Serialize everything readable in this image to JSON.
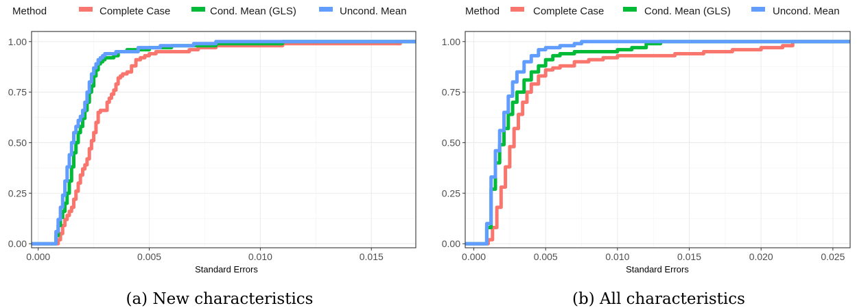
{
  "chart_data": [
    {
      "type": "line",
      "caption": "(a) New characteristics",
      "legend_title": "Method",
      "legend_position": "top",
      "xlabel": "Standard Errors",
      "ylabel": "",
      "xlim": [
        -0.0003,
        0.017
      ],
      "ylim": [
        -0.02,
        1.05
      ],
      "x_ticks": [
        0.0,
        0.005,
        0.01,
        0.015
      ],
      "x_tick_labels": [
        "0.000",
        "0.005",
        "0.010",
        "0.015"
      ],
      "y_ticks": [
        0.0,
        0.25,
        0.5,
        0.75,
        1.0
      ],
      "y_tick_labels": [
        "0.00",
        "0.25",
        "0.50",
        "0.75",
        "1.00"
      ],
      "grid": true,
      "series": [
        {
          "name": "Complete Case",
          "color": "#F8766D",
          "x": [
            -0.0003,
            0.0008,
            0.0009,
            0.001,
            0.0011,
            0.0012,
            0.0013,
            0.0014,
            0.0015,
            0.0016,
            0.0017,
            0.0018,
            0.0019,
            0.002,
            0.0021,
            0.0022,
            0.0023,
            0.0024,
            0.0025,
            0.0026,
            0.0027,
            0.0028,
            0.0029,
            0.003,
            0.0031,
            0.0032,
            0.0033,
            0.0034,
            0.0035,
            0.0036,
            0.0037,
            0.0038,
            0.004,
            0.0042,
            0.0044,
            0.0046,
            0.0048,
            0.005,
            0.0053,
            0.0057,
            0.0062,
            0.0068,
            0.0072,
            0.0076,
            0.008,
            0.011,
            0.015,
            0.0163,
            0.017
          ],
          "y": [
            0.0,
            0.0,
            0.02,
            0.05,
            0.09,
            0.12,
            0.14,
            0.16,
            0.18,
            0.22,
            0.26,
            0.3,
            0.34,
            0.37,
            0.39,
            0.42,
            0.47,
            0.51,
            0.55,
            0.6,
            0.65,
            0.66,
            0.66,
            0.66,
            0.7,
            0.72,
            0.74,
            0.76,
            0.79,
            0.82,
            0.83,
            0.84,
            0.85,
            0.88,
            0.91,
            0.92,
            0.93,
            0.94,
            0.95,
            0.95,
            0.95,
            0.96,
            0.97,
            0.97,
            0.98,
            0.99,
            0.99,
            1.0,
            1.0
          ]
        },
        {
          "name": "Cond. Mean (GLS)",
          "color": "#00BA38",
          "x": [
            -0.0003,
            0.0007,
            0.0008,
            0.0009,
            0.001,
            0.0011,
            0.0012,
            0.0013,
            0.0014,
            0.0015,
            0.0016,
            0.0017,
            0.0018,
            0.0019,
            0.002,
            0.0021,
            0.0022,
            0.0023,
            0.0024,
            0.0025,
            0.0026,
            0.0027,
            0.0028,
            0.0029,
            0.003,
            0.0032,
            0.0034,
            0.0036,
            0.004,
            0.0045,
            0.005,
            0.006,
            0.007,
            0.008,
            0.011,
            0.017
          ],
          "y": [
            0.0,
            0.0,
            0.04,
            0.09,
            0.13,
            0.16,
            0.2,
            0.25,
            0.31,
            0.38,
            0.45,
            0.5,
            0.55,
            0.58,
            0.62,
            0.66,
            0.7,
            0.75,
            0.78,
            0.83,
            0.86,
            0.89,
            0.9,
            0.91,
            0.92,
            0.92,
            0.93,
            0.95,
            0.96,
            0.96,
            0.97,
            0.98,
            0.98,
            0.99,
            1.0,
            1.0
          ]
        },
        {
          "name": "Uncond. Mean",
          "color": "#619CFF",
          "x": [
            -0.0003,
            0.0007,
            0.0008,
            0.0009,
            0.001,
            0.0011,
            0.0012,
            0.0013,
            0.0014,
            0.0015,
            0.0016,
            0.0017,
            0.0018,
            0.0019,
            0.002,
            0.0021,
            0.0022,
            0.0023,
            0.0024,
            0.0025,
            0.0026,
            0.0027,
            0.0028,
            0.0029,
            0.003,
            0.0035,
            0.0045,
            0.0055,
            0.007,
            0.008,
            0.017
          ],
          "y": [
            0.0,
            0.0,
            0.06,
            0.12,
            0.18,
            0.24,
            0.31,
            0.38,
            0.44,
            0.5,
            0.55,
            0.58,
            0.61,
            0.63,
            0.66,
            0.7,
            0.75,
            0.8,
            0.84,
            0.87,
            0.89,
            0.91,
            0.92,
            0.93,
            0.94,
            0.95,
            0.97,
            0.98,
            0.99,
            1.0,
            1.0
          ]
        }
      ]
    },
    {
      "type": "line",
      "caption": "(b) All characteristics",
      "legend_title": "Method",
      "legend_position": "top",
      "xlabel": "Standard Errors",
      "ylabel": "",
      "xlim": [
        -0.0006,
        0.0262
      ],
      "ylim": [
        -0.02,
        1.05
      ],
      "x_ticks": [
        0.0,
        0.005,
        0.01,
        0.015,
        0.02,
        0.025
      ],
      "x_tick_labels": [
        "0.000",
        "0.005",
        "0.010",
        "0.015",
        "0.020",
        "0.025"
      ],
      "y_ticks": [
        0.0,
        0.25,
        0.5,
        0.75,
        1.0
      ],
      "y_tick_labels": [
        "0.00",
        "0.25",
        "0.50",
        "0.75",
        "1.00"
      ],
      "grid": true,
      "series": [
        {
          "name": "Complete Case",
          "color": "#F8766D",
          "x": [
            -0.0006,
            0.0007,
            0.001,
            0.0013,
            0.0016,
            0.0019,
            0.0022,
            0.0025,
            0.0028,
            0.0031,
            0.0034,
            0.0037,
            0.004,
            0.0045,
            0.005,
            0.0055,
            0.006,
            0.007,
            0.008,
            0.009,
            0.01,
            0.012,
            0.014,
            0.016,
            0.018,
            0.02,
            0.0215,
            0.0222,
            0.0262
          ],
          "y": [
            0.0,
            0.0,
            0.02,
            0.08,
            0.18,
            0.28,
            0.38,
            0.48,
            0.57,
            0.64,
            0.7,
            0.75,
            0.79,
            0.83,
            0.86,
            0.87,
            0.88,
            0.9,
            0.91,
            0.92,
            0.93,
            0.93,
            0.94,
            0.95,
            0.96,
            0.97,
            0.98,
            1.0,
            1.0
          ]
        },
        {
          "name": "Cond. Mean (GLS)",
          "color": "#00BA38",
          "x": [
            -0.0006,
            0.0006,
            0.0009,
            0.0012,
            0.0015,
            0.0018,
            0.0021,
            0.0024,
            0.0027,
            0.003,
            0.0035,
            0.004,
            0.0045,
            0.005,
            0.0055,
            0.006,
            0.007,
            0.008,
            0.009,
            0.01,
            0.011,
            0.012,
            0.013,
            0.0262
          ],
          "y": [
            0.0,
            0.0,
            0.08,
            0.27,
            0.4,
            0.49,
            0.57,
            0.64,
            0.7,
            0.75,
            0.81,
            0.85,
            0.88,
            0.91,
            0.93,
            0.94,
            0.95,
            0.95,
            0.95,
            0.96,
            0.97,
            0.99,
            1.0,
            1.0
          ]
        },
        {
          "name": "Uncond. Mean",
          "color": "#619CFF",
          "x": [
            -0.0006,
            0.0006,
            0.0009,
            0.0012,
            0.0015,
            0.0018,
            0.0021,
            0.0024,
            0.0027,
            0.003,
            0.0035,
            0.004,
            0.0045,
            0.005,
            0.006,
            0.007,
            0.0075,
            0.0262
          ],
          "y": [
            0.0,
            0.0,
            0.1,
            0.33,
            0.46,
            0.56,
            0.65,
            0.73,
            0.8,
            0.85,
            0.9,
            0.93,
            0.96,
            0.97,
            0.98,
            0.99,
            1.0,
            1.0
          ]
        }
      ]
    }
  ]
}
